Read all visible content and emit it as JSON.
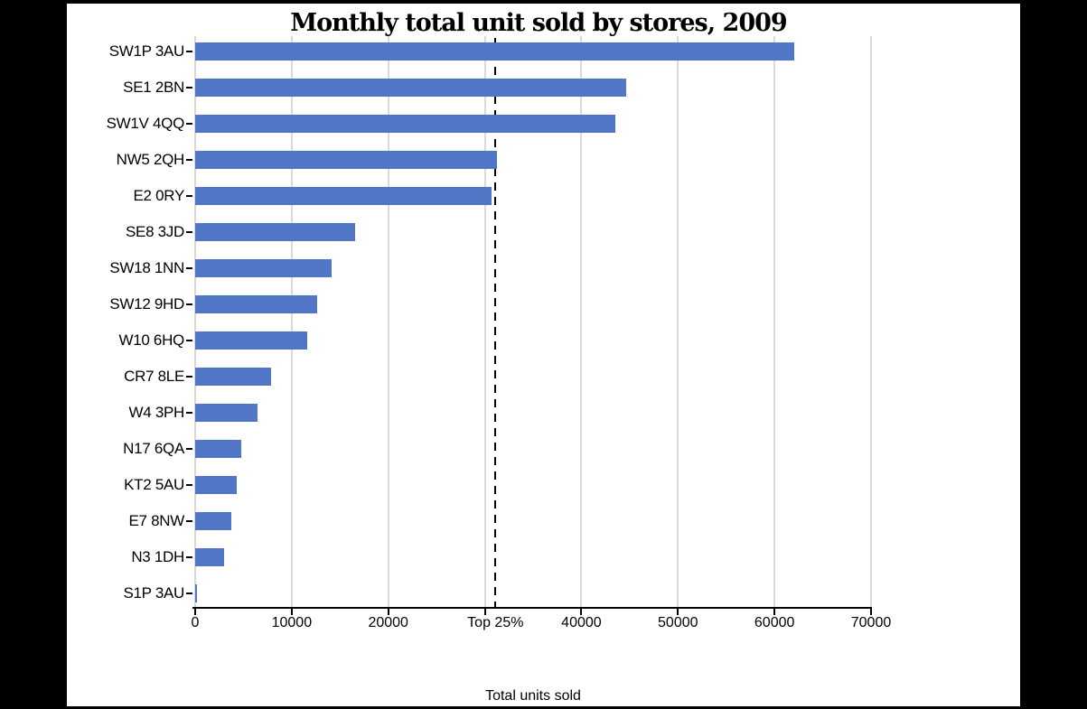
{
  "frame": {
    "background_color": "#000000",
    "panel_color": "#ffffff"
  },
  "chart_data": {
    "type": "bar",
    "orientation": "horizontal",
    "title": "Monthly total unit sold by stores, 2009",
    "xlabel": "Total units sold",
    "ylabel": "",
    "categories": [
      "SW1P 3AU",
      "SE1 2BN",
      "SW1V 4QQ",
      "NW5 2QH",
      "E2 0RY",
      "SE8 3JD",
      "SW18 1NN",
      "SW12 9HD",
      "W10 6HQ",
      "CR7 8LE",
      "W4 3PH",
      "N17 6QA",
      "KT2 5AU",
      "E7 8NW",
      "N3 1DH",
      "S1P 3AU"
    ],
    "values": [
      62000,
      44600,
      43500,
      31300,
      30700,
      16600,
      14100,
      12600,
      11600,
      7900,
      6500,
      4800,
      4300,
      3700,
      3000,
      100
    ],
    "xlim": [
      0,
      70000
    ],
    "xticks": [
      0,
      10000,
      20000,
      30000,
      40000,
      50000,
      60000,
      70000
    ],
    "xtick_labels": [
      "0",
      "10000",
      "20000",
      "Top 25%",
      "40000",
      "50000",
      "60000",
      "70000"
    ],
    "grid": "vertical-gridlines-on",
    "legend": "none",
    "bar_color": "#5276c6",
    "gridline_color": "#d9d9d9",
    "reference_line": {
      "value": 31100,
      "label": "Top 25%",
      "style": "dashed",
      "color": "#000000",
      "label_position": "x-axis"
    }
  }
}
